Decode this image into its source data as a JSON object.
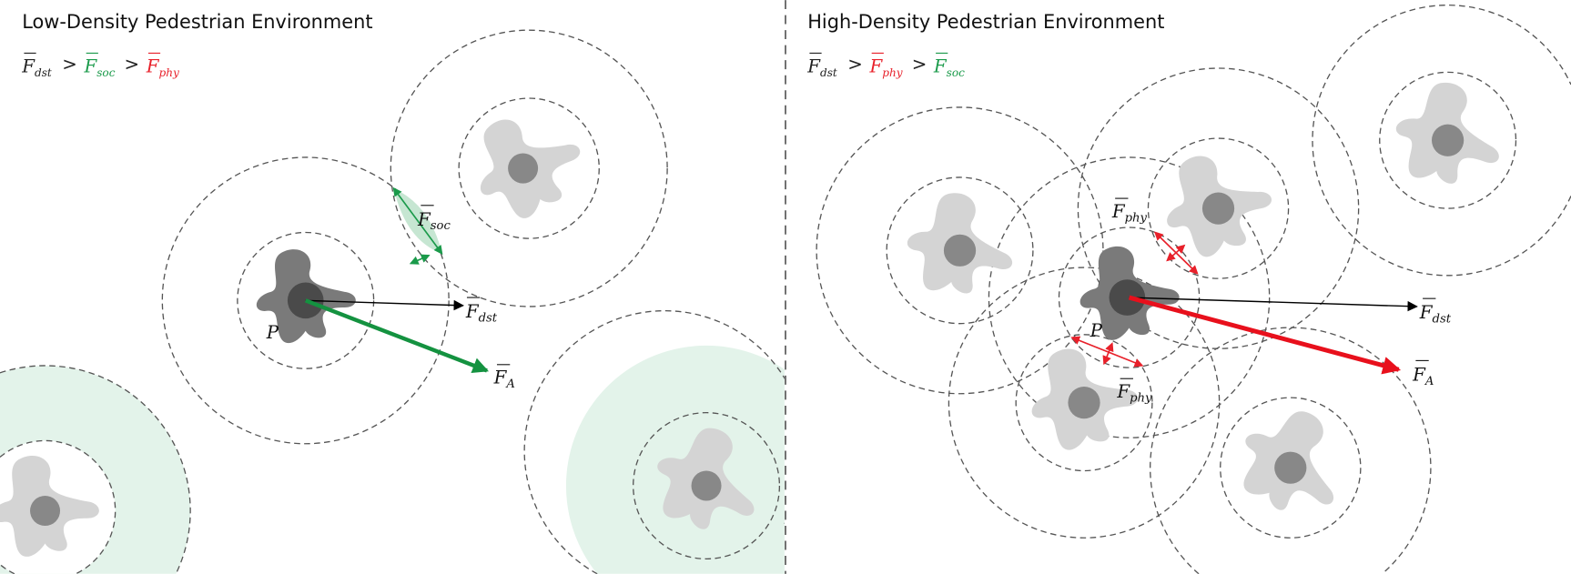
{
  "left_panel": {
    "title": "Low-Density Pedestrian Environment",
    "ordering": [
      {
        "symbol": "F",
        "sub": "dst",
        "color": "#222222"
      },
      {
        "symbol": "F",
        "sub": "soc",
        "color": "#1a9a4a"
      },
      {
        "symbol": "F",
        "sub": "phy",
        "color": "#e8202a"
      }
    ],
    "separator": ">",
    "labels": {
      "soc": {
        "symbol": "F",
        "sub": "soc"
      },
      "dst": {
        "symbol": "F",
        "sub": "dst"
      },
      "a": {
        "symbol": "F",
        "sub": "A"
      },
      "p": "P"
    }
  },
  "right_panel": {
    "title": "High-Density Pedestrian Environment",
    "ordering": [
      {
        "symbol": "F",
        "sub": "dst",
        "color": "#222222"
      },
      {
        "symbol": "F",
        "sub": "phy",
        "color": "#e8202a"
      },
      {
        "symbol": "F",
        "sub": "soc",
        "color": "#1a9a4a"
      }
    ],
    "separator": ">",
    "labels": {
      "phy_top": {
        "symbol": "F",
        "sub": "phy"
      },
      "phy_bottom": {
        "symbol": "F",
        "sub": "phy"
      },
      "dst": {
        "symbol": "F",
        "sub": "dst"
      },
      "a": {
        "symbol": "F",
        "sub": "A"
      },
      "p": "P"
    }
  },
  "colors": {
    "social_zone": "#e3f3ea",
    "physical_zone": "#fbe3e5",
    "overlap_zone": "#ece6d6",
    "social_force": "#1a9a4a",
    "physical_force": "#e8202a",
    "resultant_low": "#149240",
    "resultant_high": "#e8101c"
  }
}
